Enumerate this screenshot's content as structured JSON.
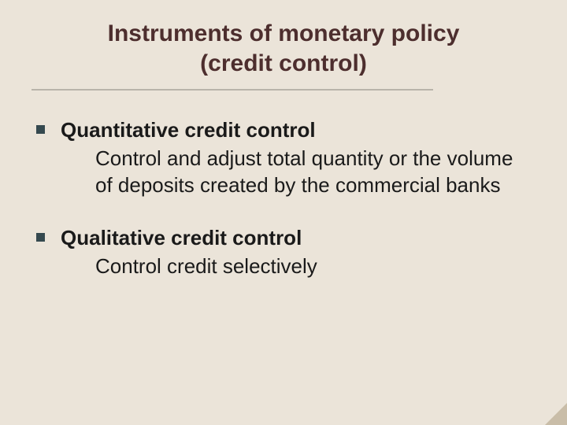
{
  "title_line1": "Instruments of monetary policy",
  "title_line2": "(credit control)",
  "colors": {
    "background": "#ebe4d9",
    "title": "#4d2e2e",
    "body_text": "#1a1a1a",
    "bullet": "#35494f",
    "rule": "#b9b4aa",
    "corner": "#c9bda8"
  },
  "typography": {
    "font_family": "Verdana",
    "title_fontsize_pt": 23,
    "body_fontsize_pt": 20,
    "title_weight": "bold",
    "heading_weight": "bold",
    "desc_weight": "normal"
  },
  "items": [
    {
      "heading": "Quantitative credit control",
      "description": "Control and adjust total quantity or the volume of deposits created by the commercial banks"
    },
    {
      "heading": "Qualitative credit control",
      "description": "Control credit selectively"
    }
  ]
}
